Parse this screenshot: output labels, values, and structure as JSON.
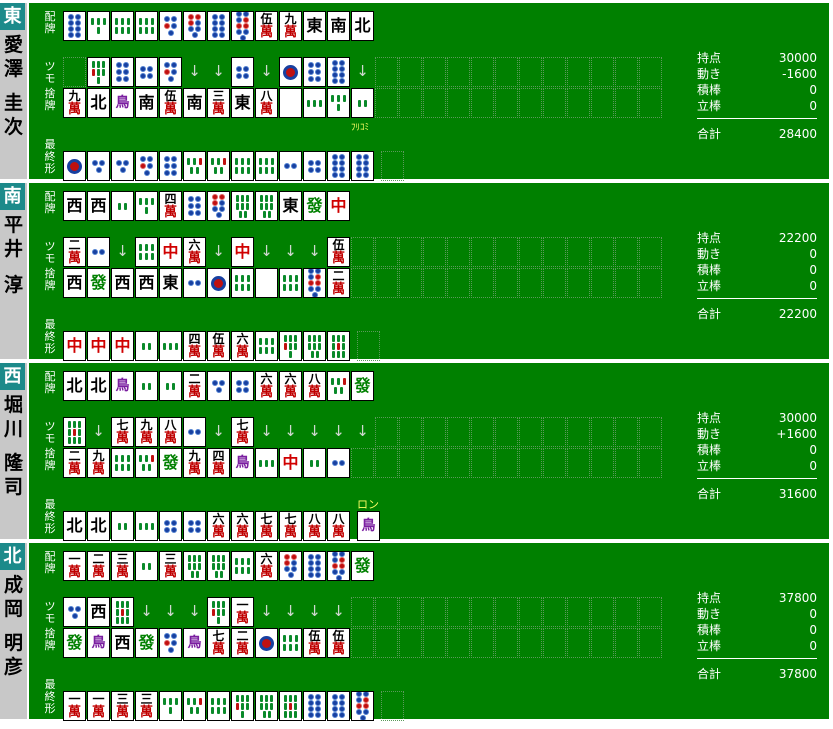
{
  "labels": {
    "haipai_1": "配",
    "haipai_2": "牌",
    "tsumo": "ツモ",
    "sute_1": "捨",
    "sute_2": "牌",
    "final_1": "最",
    "final_2": "終",
    "final_3": "形"
  },
  "stat_labels": {
    "points": "持点",
    "change": "動き",
    "tsumibo": "積棒",
    "riichibo": "立棒",
    "total": "合計"
  },
  "players": [
    {
      "wind": "東",
      "name": [
        "愛",
        "澤",
        "圭",
        "次"
      ],
      "haipai": [
        "pin8",
        "so4",
        "so6",
        "so6",
        "pin5",
        "pin7",
        "pin8",
        "pin9",
        "m5",
        "m9",
        "E",
        "S",
        "N"
      ],
      "tsumo": [
        "slot",
        "so7",
        "pin6",
        "pin4",
        "pin5",
        "arrow",
        "arrow",
        "pin4",
        "arrow",
        "pin1",
        "pin6",
        "pin8",
        "arrow"
      ],
      "discards": [
        "m9",
        "N",
        "so1",
        "S",
        "m5",
        "S",
        "m3",
        "E",
        "m8",
        "blank",
        "so3",
        "so4",
        "so2"
      ],
      "final": [
        "pin1",
        "pin3",
        "pin3",
        "pin5",
        "pin6",
        "so5",
        "so5",
        "so6",
        "so6",
        "pin2",
        "pin4",
        "pin8",
        "pin8"
      ],
      "note": "ﾌﾘｺﾐ",
      "stats": {
        "points": "30000",
        "change": "-1600",
        "tsumibo": "0",
        "riichibo": "0",
        "total": "28400"
      }
    },
    {
      "wind": "南",
      "name": [
        "平",
        "井",
        "淳"
      ],
      "haipai": [
        "W",
        "W",
        "so2",
        "so4",
        "m4",
        "pin6",
        "pin7",
        "so8",
        "so8",
        "E",
        "F",
        "C"
      ],
      "tsumo": [
        "m2",
        "pin2",
        "arrow",
        "so6",
        "C",
        "m6",
        "arrow",
        "C",
        "arrow",
        "arrow",
        "arrow",
        "m5"
      ],
      "discards": [
        "W",
        "F",
        "W",
        "W",
        "E",
        "pin2",
        "pin1",
        "so6",
        "blank",
        "so6",
        "pin9",
        "m2"
      ],
      "final": [
        "C",
        "C",
        "C",
        "so2",
        "so3",
        "m4",
        "m5",
        "m6",
        "so6",
        "so7",
        "so8",
        "so9"
      ],
      "note": "",
      "stats": {
        "points": "22200",
        "change": "0",
        "tsumibo": "0",
        "riichibo": "0",
        "total": "22200"
      }
    },
    {
      "wind": "西",
      "name": [
        "堀",
        "川",
        "隆",
        "司"
      ],
      "haipai": [
        "N",
        "N",
        "so1",
        "so2",
        "so2",
        "m2",
        "pin3",
        "pin4",
        "m6",
        "m6",
        "m8",
        "so5",
        "F"
      ],
      "tsumo": [
        "so9",
        "arrow",
        "m7",
        "m9",
        "m8",
        "pin2",
        "arrow",
        "m7",
        "arrow",
        "arrow",
        "arrow",
        "arrow",
        "arrow"
      ],
      "discards": [
        "m2",
        "m9",
        "so6",
        "so5",
        "F",
        "m9",
        "m4",
        "so1",
        "so3",
        "C",
        "so2",
        "pin2"
      ],
      "final": [
        "N",
        "N",
        "so2",
        "so3",
        "pin4",
        "pin4",
        "m6",
        "m6",
        "m7",
        "m7",
        "m8",
        "m8"
      ],
      "agari": "so1",
      "agari_label": "ロン",
      "note": "",
      "stats": {
        "points": "30000",
        "change": "+1600",
        "tsumibo": "0",
        "riichibo": "0",
        "total": "31600"
      }
    },
    {
      "wind": "北",
      "name": [
        "成",
        "岡",
        "明",
        "彦"
      ],
      "haipai": [
        "m1",
        "m2",
        "m3",
        "so2",
        "m3",
        "so8",
        "so8",
        "so6",
        "m6",
        "pin7",
        "pin8",
        "pin9",
        "F"
      ],
      "tsumo": [
        "pin3",
        "W",
        "so9",
        "arrow",
        "arrow",
        "arrow",
        "so7",
        "m1",
        "arrow",
        "arrow",
        "arrow",
        "arrow"
      ],
      "discards": [
        "F",
        "so1",
        "W",
        "F",
        "pin5",
        "so1",
        "m7",
        "m2",
        "pin1",
        "so6",
        "m5",
        "m5"
      ],
      "final": [
        "m1",
        "m1",
        "m3",
        "m3",
        "so4",
        "so5",
        "so6",
        "so7",
        "so8",
        "so9",
        "pin8",
        "pin8",
        "pin9"
      ],
      "note": "",
      "stats": {
        "points": "37800",
        "change": "0",
        "tsumibo": "0",
        "riichibo": "0",
        "total": "37800"
      }
    }
  ]
}
